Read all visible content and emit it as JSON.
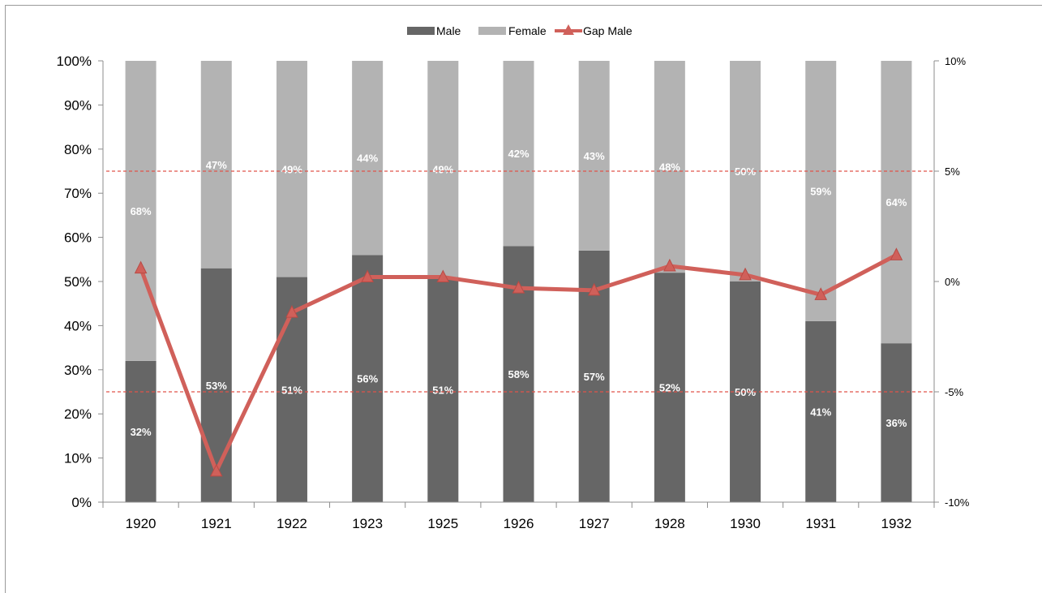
{
  "chart_data": {
    "type": "bar",
    "stacked": true,
    "categories": [
      "1920",
      "1921",
      "1922",
      "1923",
      "1925",
      "1926",
      "1927",
      "1928",
      "1930",
      "1931",
      "1932"
    ],
    "series": [
      {
        "name": "Male",
        "kind": "bar",
        "axis": "left",
        "color": "#666666",
        "values": [
          32,
          53,
          51,
          56,
          51,
          58,
          57,
          52,
          50,
          41,
          36
        ],
        "labels": [
          "32%",
          "53%",
          "51%",
          "56%",
          "51%",
          "58%",
          "57%",
          "52%",
          "50%",
          "41%",
          "36%"
        ]
      },
      {
        "name": "Female",
        "kind": "bar",
        "axis": "left",
        "color": "#b3b3b3",
        "values": [
          68,
          47,
          49,
          44,
          49,
          42,
          43,
          48,
          50,
          59,
          64
        ],
        "labels": [
          "68%",
          "47%",
          "49%",
          "44%",
          "49%",
          "42%",
          "43%",
          "48%",
          "50%",
          "59%",
          "64%"
        ]
      },
      {
        "name": "Gap Male",
        "kind": "line",
        "axis": "right",
        "color": "#d0605a",
        "marker": "triangle",
        "values": [
          0.6,
          -8.6,
          -1.4,
          0.2,
          0.2,
          -0.3,
          -0.4,
          0.7,
          0.3,
          -0.6,
          1.2
        ]
      }
    ],
    "reference_lines": [
      {
        "axis": "right",
        "value": 5,
        "color": "#e0534a",
        "style": "dashed"
      },
      {
        "axis": "right",
        "value": -5,
        "color": "#e0534a",
        "style": "dashed"
      }
    ],
    "y_left": {
      "ylim": [
        0,
        100
      ],
      "ticks": [
        0,
        10,
        20,
        30,
        40,
        50,
        60,
        70,
        80,
        90,
        100
      ],
      "tick_labels": [
        "0%",
        "10%",
        "20%",
        "30%",
        "40%",
        "50%",
        "60%",
        "70%",
        "80%",
        "90%",
        "100%"
      ]
    },
    "y_right": {
      "ylim": [
        -10,
        10
      ],
      "ticks": [
        -10,
        -5,
        0,
        5,
        10
      ],
      "tick_labels": [
        "-10%",
        "-5%",
        "0%",
        "5%",
        "10%"
      ]
    },
    "legend": {
      "position": "top",
      "entries": [
        "Male",
        "Female",
        "Gap Male"
      ]
    },
    "grid": false,
    "title": "",
    "xlabel": "",
    "ylabel": ""
  }
}
